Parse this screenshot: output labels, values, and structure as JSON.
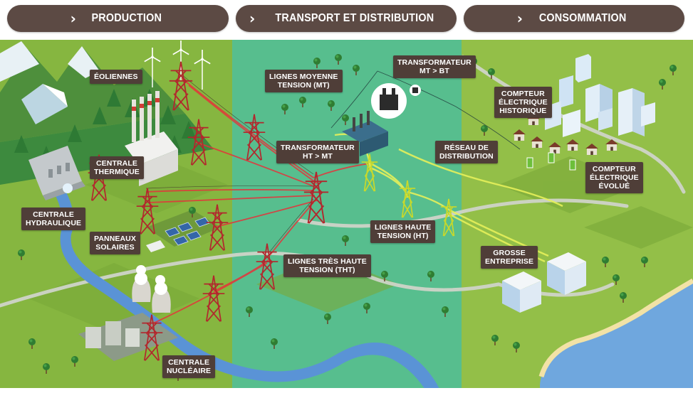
{
  "tabs": {
    "production": "PRODUCTION",
    "transport": "TRANSPORT ET DISTRIBUTION",
    "consommation": "CONSOMMATION"
  },
  "labels": {
    "eoliennes": "ÉOLIENNES",
    "centrale_thermique": "CENTRALE\nTHERMIQUE",
    "centrale_hydraulique": "CENTRALE\nHYDRAULIQUE",
    "panneaux_solaires": "PANNEAUX\nSOLAIRES",
    "centrale_nucleaire": "CENTRALE\nNUCLÉAIRE",
    "lignes_moyenne_tension": "LIGNES MOYENNE\nTENSION (MT)",
    "transformateur_mt_bt": "TRANSFORMATEUR\nMT > BT",
    "transformateur_ht_mt": "TRANSFORMATEUR\nHT > MT",
    "reseau_distribution": "RÉSEAU DE\nDISTRIBUTION",
    "lignes_haute_tension": "LIGNES HAUTE\nTENSION (HT)",
    "lignes_tres_haute_tension": "LIGNES TRÈS HAUTE\nTENSION (THT)",
    "compteur_historique": "COMPTEUR\nÉLECTRIQUE\nHISTORIQUE",
    "compteur_evolue": "COMPTEUR\nÉLECTRIQUE\nÉVOLUÉ",
    "grosse_entreprise": "GROSSE\nENTREPRISE"
  },
  "colors": {
    "tab_bg": "#5c4a44",
    "label_bg": "#4f3e38",
    "grass": "#86b640",
    "transport_zone": "#4fbf9c",
    "river": "#5a93d6",
    "sea": "#6fa7de",
    "tht_line": "#e6323a",
    "ht_line": "#e6f05a"
  },
  "icons": {
    "tab_arrow": "chevron-right-icon"
  }
}
